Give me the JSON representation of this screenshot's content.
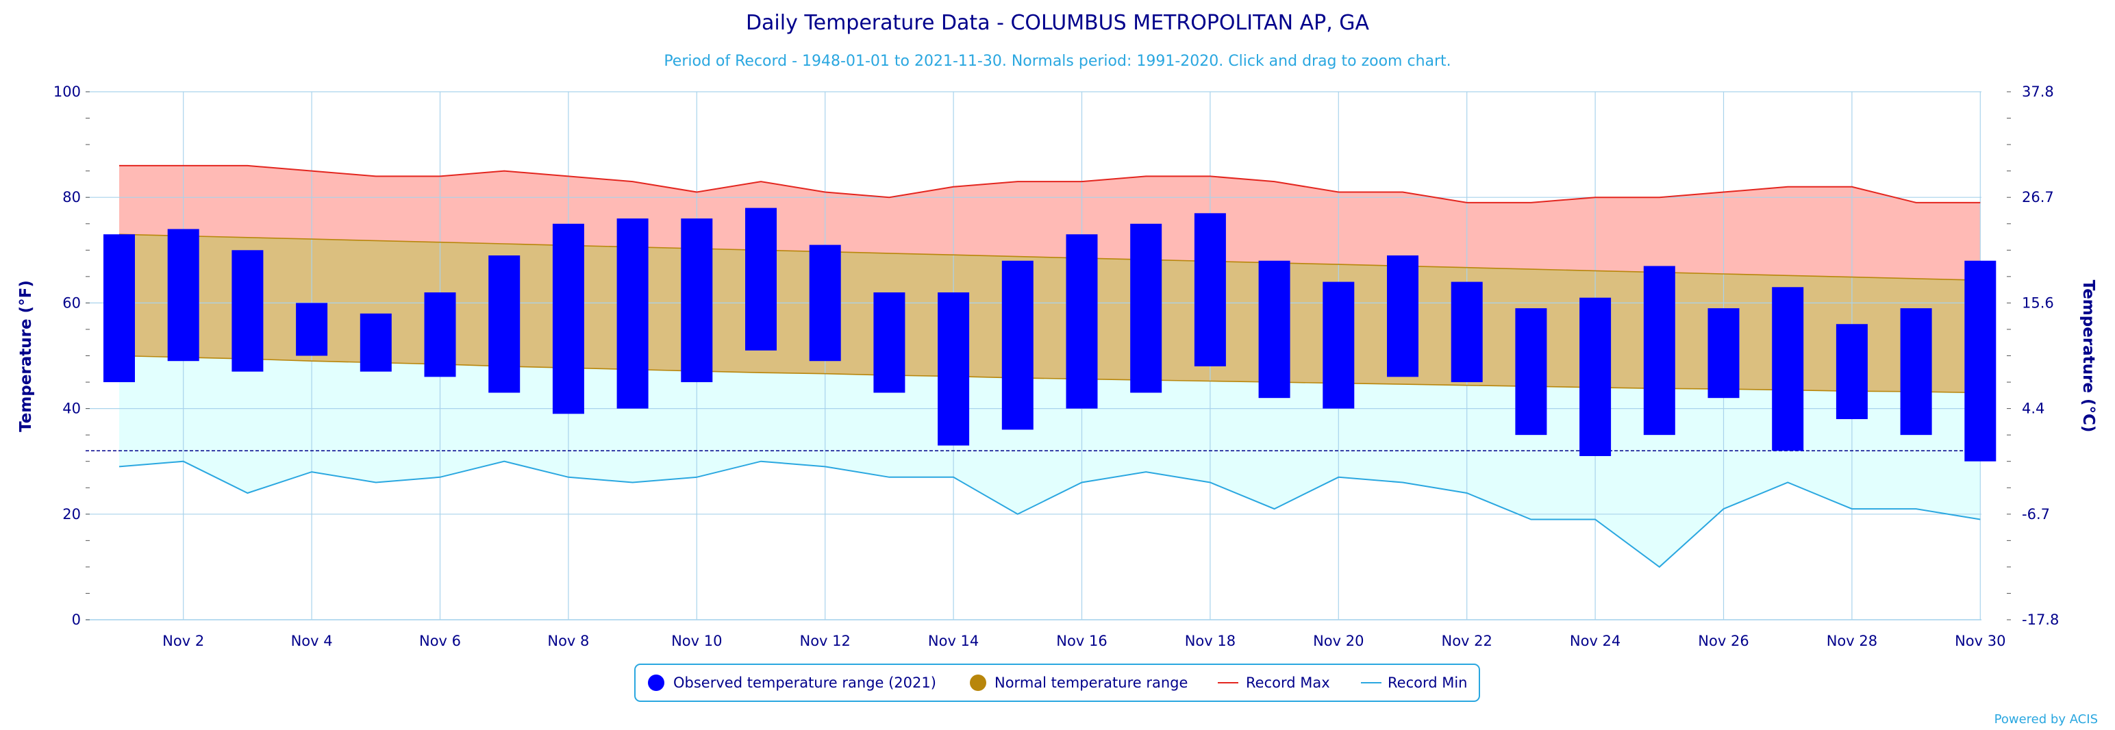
{
  "chart_data": {
    "type": "bar",
    "title": "Daily Temperature Data - COLUMBUS METROPOLITAN AP, GA",
    "subtitle": "Period of Record - 1948-01-01 to 2021-11-30. Normals period: 1991-2020. Click and drag to zoom chart.",
    "ylabel": "Temperature (°F)",
    "ylabel_right": "Temperature (°C)",
    "ylim": [
      0,
      100
    ],
    "y_ticks": [
      "0",
      "20",
      "40",
      "60",
      "80",
      "100"
    ],
    "y_ticks_right": [
      "-17.8",
      "-6.7",
      "4.4",
      "15.6",
      "26.7",
      "37.8"
    ],
    "x_tick_labels": [
      "Nov 2",
      "Nov 4",
      "Nov 6",
      "Nov 8",
      "Nov 10",
      "Nov 12",
      "Nov 14",
      "Nov 16",
      "Nov 18",
      "Nov 20",
      "Nov 22",
      "Nov 24",
      "Nov 26",
      "Nov 28",
      "Nov 30"
    ],
    "freezing_line": 32,
    "days": [
      1,
      2,
      3,
      4,
      5,
      6,
      7,
      8,
      9,
      10,
      11,
      12,
      13,
      14,
      15,
      16,
      17,
      18,
      19,
      20,
      21,
      22,
      23,
      24,
      25,
      26,
      27,
      28,
      29,
      30
    ],
    "observed_high": [
      73,
      74,
      70,
      60,
      58,
      62,
      69,
      75,
      76,
      76,
      78,
      71,
      62,
      62,
      68,
      73,
      75,
      77,
      68,
      64,
      69,
      64,
      59,
      61,
      67,
      59,
      63,
      56,
      59,
      68
    ],
    "observed_low": [
      45,
      49,
      47,
      50,
      47,
      46,
      43,
      39,
      40,
      45,
      51,
      49,
      43,
      33,
      36,
      40,
      43,
      48,
      42,
      40,
      46,
      45,
      35,
      31,
      35,
      42,
      32,
      38,
      35,
      30
    ],
    "normal_high": [
      73,
      72.7,
      72.4,
      72.1,
      71.8,
      71.5,
      71.2,
      70.9,
      70.6,
      70.3,
      70,
      69.7,
      69.4,
      69.1,
      68.8,
      68.5,
      68.2,
      67.9,
      67.6,
      67.3,
      67,
      66.7,
      66.4,
      66.1,
      65.8,
      65.5,
      65.2,
      64.9,
      64.6,
      64.3
    ],
    "normal_low": [
      50,
      49.7,
      49.4,
      49,
      48.7,
      48.4,
      48,
      47.7,
      47.4,
      47.1,
      46.8,
      46.6,
      46.3,
      46.1,
      45.8,
      45.6,
      45.4,
      45.2,
      45,
      44.8,
      44.6,
      44.4,
      44.2,
      44,
      43.8,
      43.7,
      43.5,
      43.3,
      43.2,
      43
    ],
    "record_max": [
      86,
      86,
      86,
      85,
      84,
      84,
      85,
      84,
      83,
      81,
      83,
      81,
      80,
      82,
      83,
      83,
      84,
      84,
      83,
      81,
      81,
      79,
      79,
      80,
      80,
      81,
      82,
      82,
      79,
      79
    ],
    "record_min": [
      29,
      30,
      24,
      28,
      26,
      27,
      30,
      27,
      26,
      27,
      30,
      29,
      27,
      27,
      20,
      26,
      28,
      26,
      21,
      27,
      26,
      24,
      19,
      19,
      10,
      21,
      26,
      21,
      21,
      19
    ],
    "legend": [
      {
        "label": "Observed temperature range (2021)",
        "color": "#0000ff",
        "symbol": "circle"
      },
      {
        "label": "Normal temperature range",
        "color": "#b8860b",
        "symbol": "circle"
      },
      {
        "label": "Record Max",
        "color": "#e3261f",
        "symbol": "line"
      },
      {
        "label": "Record Min",
        "color": "#2aa7e0",
        "symbol": "line"
      }
    ],
    "legend_position": "bottom-center",
    "grid": true,
    "colors": {
      "observed": "#0000ff",
      "normal_fill": "#dbbf7f",
      "normal_line": "#b8860b",
      "record_max_fill": "#ffbab5",
      "record_max_line": "#e3261f",
      "record_min_fill": "#e2fffe",
      "record_min_line": "#2aa7e0",
      "grid": "#a9d3ec",
      "text": "#00008b"
    }
  },
  "credits": "Powered by ACIS"
}
